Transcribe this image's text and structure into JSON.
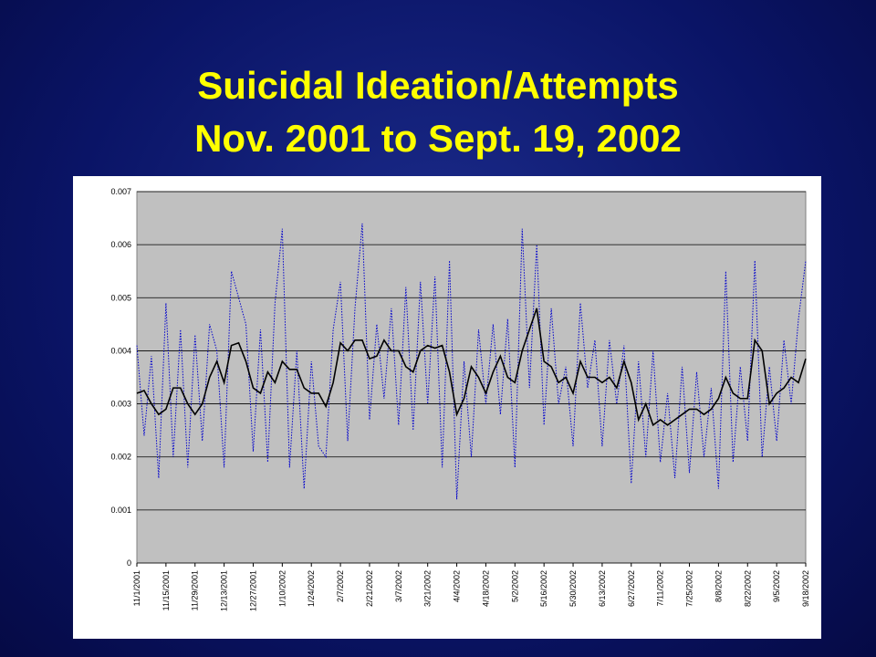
{
  "chart_data": {
    "type": "line",
    "title": [
      "Suicidal Ideation/Attempts",
      "Nov. 2001 to Sept. 19, 2002"
    ],
    "categories": [
      "11/1/2001",
      null,
      null,
      null,
      "11/15/2001",
      null,
      null,
      null,
      "11/29/2001",
      null,
      null,
      null,
      "12/13/2001",
      null,
      null,
      null,
      "12/27/2001",
      null,
      null,
      null,
      "1/10/2002",
      null,
      null,
      null,
      "1/24/2002",
      null,
      null,
      null,
      "2/7/2002",
      null,
      null,
      null,
      "2/21/2002",
      null,
      null,
      null,
      "3/7/2002",
      null,
      null,
      null,
      "3/21/2002",
      null,
      null,
      null,
      "4/4/2002",
      null,
      null,
      null,
      "4/18/2002",
      null,
      null,
      null,
      "5/2/2002",
      null,
      null,
      null,
      "5/16/2002",
      null,
      null,
      null,
      "5/30/2002",
      null,
      null,
      null,
      "6/13/2002",
      null,
      null,
      null,
      "6/27/2002",
      null,
      null,
      null,
      "7/11/2002",
      null,
      null,
      null,
      "7/25/2002",
      null,
      null,
      null,
      "8/8/2002",
      null,
      null,
      null,
      "8/22/2002",
      null,
      null,
      null,
      "9/5/2002",
      null,
      null,
      null,
      "9/18/2002"
    ],
    "series": [
      {
        "color": "#0000cc",
        "style": "dotted",
        "values": [
          0.0041,
          0.0024,
          0.0039,
          0.0016,
          0.0049,
          0.002,
          0.0044,
          0.0018,
          0.0043,
          0.0023,
          0.0045,
          0.004,
          0.0018,
          0.0055,
          0.005,
          0.0045,
          0.0021,
          0.0044,
          0.0019,
          0.0049,
          0.0063,
          0.0018,
          0.004,
          0.0014,
          0.0038,
          0.0022,
          0.002,
          0.0044,
          0.0053,
          0.0023,
          0.0048,
          0.0064,
          0.0027,
          0.0045,
          0.0031,
          0.0048,
          0.0026,
          0.0052,
          0.0025,
          0.0053,
          0.003,
          0.0054,
          0.0018,
          0.0057,
          0.0012,
          0.0038,
          0.002,
          0.0044,
          0.003,
          0.0045,
          0.0028,
          0.0046,
          0.0018,
          0.0063,
          0.0033,
          0.006,
          0.0026,
          0.0048,
          0.003,
          0.0037,
          0.0022,
          0.0049,
          0.0033,
          0.0042,
          0.0022,
          0.0042,
          0.003,
          0.0041,
          0.0015,
          0.0038,
          0.002,
          0.004,
          0.0019,
          0.0032,
          0.0016,
          0.0037,
          0.0017,
          0.0036,
          0.002,
          0.0033,
          0.0014,
          0.0055,
          0.0019,
          0.0037,
          0.0023,
          0.0057,
          0.002,
          0.0037,
          0.0023,
          0.0042,
          0.003,
          0.0046,
          0.0057
        ]
      },
      {
        "color": "#000000",
        "style": "solid",
        "values": [
          0.0032,
          0.00325,
          0.003,
          0.0028,
          0.0029,
          0.0033,
          0.0033,
          0.003,
          0.0028,
          0.003,
          0.0035,
          0.0038,
          0.0034,
          0.0041,
          0.00415,
          0.0038,
          0.0033,
          0.0032,
          0.0036,
          0.0034,
          0.0038,
          0.00365,
          0.00365,
          0.0033,
          0.0032,
          0.0032,
          0.00295,
          0.0034,
          0.00415,
          0.004,
          0.0042,
          0.0042,
          0.00385,
          0.0039,
          0.0042,
          0.004,
          0.004,
          0.0037,
          0.0036,
          0.004,
          0.0041,
          0.00405,
          0.0041,
          0.0036,
          0.0028,
          0.0031,
          0.0037,
          0.0035,
          0.0032,
          0.0036,
          0.0039,
          0.0035,
          0.0034,
          0.004,
          0.0044,
          0.0048,
          0.0038,
          0.0037,
          0.0034,
          0.0035,
          0.0032,
          0.0038,
          0.0035,
          0.0035,
          0.0034,
          0.0035,
          0.0033,
          0.0038,
          0.0034,
          0.0027,
          0.003,
          0.0026,
          0.0027,
          0.0026,
          0.0027,
          0.0028,
          0.0029,
          0.0029,
          0.0028,
          0.0029,
          0.0031,
          0.0035,
          0.0032,
          0.0031,
          0.0031,
          0.0042,
          0.004,
          0.003,
          0.0032,
          0.0033,
          0.0035,
          0.0034,
          0.00385
        ]
      }
    ],
    "ylim": [
      0,
      0.007
    ],
    "yticks": [
      0,
      0.001,
      0.002,
      0.003,
      0.004,
      0.005,
      0.006,
      0.007
    ],
    "grid": true,
    "plot_background": "#c0c0c0"
  }
}
